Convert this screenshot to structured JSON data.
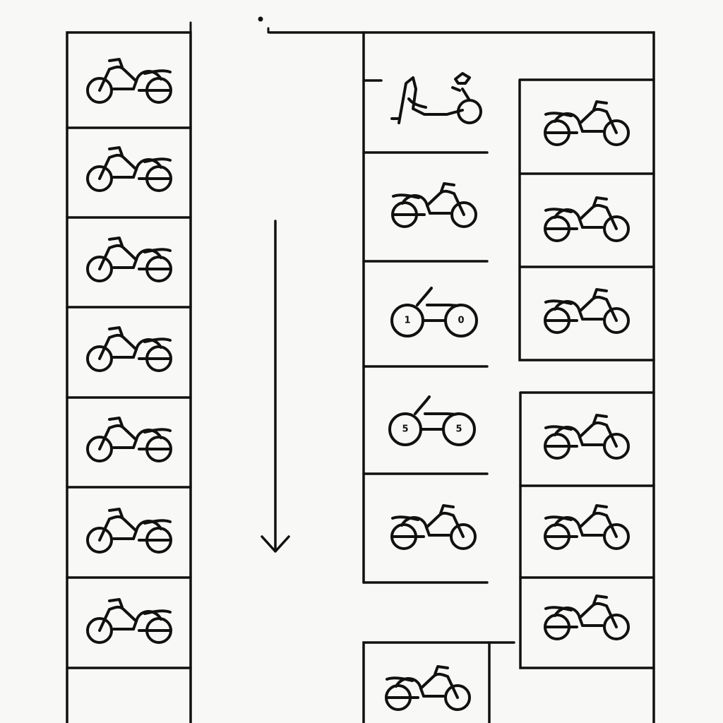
{
  "colors": {
    "ink": "#111111",
    "paper": "#f8f8f6"
  },
  "diagram": {
    "kind": "motorcycle parking layout",
    "traffic_direction": "down",
    "left_column": {
      "spaces": [
        {
          "icon": "motorcycle-icon"
        },
        {
          "icon": "motorcycle-icon"
        },
        {
          "icon": "motorcycle-icon"
        },
        {
          "icon": "motorcycle-icon"
        },
        {
          "icon": "motorcycle-icon"
        },
        {
          "icon": "motorcycle-icon"
        },
        {
          "icon": "motorcycle-icon"
        },
        {
          "icon": ""
        }
      ]
    },
    "center_column": {
      "spaces": [
        {
          "icon": "scooter-icon"
        },
        {
          "icon": "motorcycle-icon"
        },
        {
          "icon": "two-wheeler-icon",
          "wheel_labels": [
            "1",
            "0"
          ]
        },
        {
          "icon": "two-wheeler-icon",
          "wheel_labels": [
            "5",
            "5"
          ]
        },
        {
          "icon": "motorcycle-icon"
        },
        {
          "icon": "motorcycle-icon"
        }
      ]
    },
    "right_upper_block": {
      "spaces": [
        {
          "icon": "motorcycle-icon"
        },
        {
          "icon": "motorcycle-icon"
        },
        {
          "icon": "motorcycle-icon"
        }
      ]
    },
    "right_lower_block": {
      "spaces": [
        {
          "icon": "motorcycle-icon"
        },
        {
          "icon": "motorcycle-icon"
        },
        {
          "icon": "motorcycle-icon"
        }
      ]
    }
  }
}
